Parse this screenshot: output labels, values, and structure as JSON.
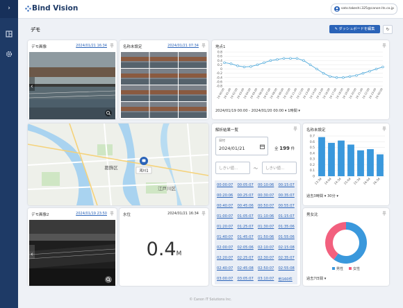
{
  "header": {
    "logo": "Bind Vision",
    "user": "sato.takeshi.325@canon-its.co.jp"
  },
  "page": {
    "title": "デモ",
    "edit_button": "ダッシュボードを編集",
    "footer": "© Canon IT Solutions Inc."
  },
  "cards": {
    "image1": {
      "title": "デモ画像",
      "date": "2024/01/21 16:34"
    },
    "image_grid": {
      "title": "名称未設定",
      "date": "2024/01/21 07:34"
    },
    "image2": {
      "title": "デモ画像2",
      "date": "2024/01/19 23:50"
    },
    "water": {
      "title": "水位",
      "date": "2024/01/21 16:34",
      "value": 0.4,
      "unit": "M"
    },
    "map": {
      "labels": [
        "葛飾区",
        "江戸川区"
      ],
      "marker": "河川1"
    },
    "results": {
      "title": "解析結果一覧",
      "date_label": "日付",
      "date": "2024/01/21",
      "total_prefix": "全",
      "total": 199,
      "total_suffix": "件",
      "threshold_min": "しきい値…",
      "range_sep": "〜",
      "threshold_max": "しきい値…",
      "times": [
        "00:00:07",
        "00:05:07",
        "00:10:06",
        "00:15:07",
        "00:20:06",
        "00:25:07",
        "00:30:07",
        "00:35:07",
        "00:40:07",
        "00:45:06",
        "00:50:07",
        "00:55:07",
        "01:00:07",
        "01:05:07",
        "01:10:06",
        "01:15:07",
        "01:20:07",
        "01:25:07",
        "01:30:07",
        "01:35:06",
        "01:40:07",
        "01:45:07",
        "01:50:06",
        "01:55:06",
        "02:00:07",
        "02:05:06",
        "02:10:07",
        "02:15:08",
        "02:20:07",
        "02:25:07",
        "02:30:07",
        "02:35:07",
        "02:40:07",
        "02:45:08",
        "02:50:07",
        "02:55:08",
        "03:00:07",
        "03:05:07",
        "03:10:07",
        "他160件"
      ]
    }
  },
  "chart_data": [
    {
      "type": "line",
      "title": "地点1",
      "categories": [
        "19 00:00",
        "19 01:00",
        "19 02:00",
        "19 03:00",
        "19 04:00",
        "19 05:00",
        "19 06:00",
        "19 07:00",
        "19 08:00",
        "19 09:00",
        "19 10:00",
        "19 11:00",
        "19 12:00",
        "19 13:00",
        "19 14:00",
        "19 15:00",
        "19 16:00",
        "19 17:00",
        "19 18:00",
        "19 19:00",
        "19 20:00",
        "19 21:00",
        "19 22:00",
        "19 23:00",
        "20 00:00"
      ],
      "series": [
        {
          "name": "地点1",
          "color": "#5aaedc",
          "values": [
            0.3,
            0.25,
            0.15,
            0.1,
            0.12,
            0.2,
            0.3,
            0.4,
            0.45,
            0.5,
            0.5,
            0.5,
            0.4,
            0.2,
            0.0,
            -0.2,
            -0.35,
            -0.4,
            -0.4,
            -0.35,
            -0.3,
            -0.2,
            -0.1,
            0.0,
            0.1
          ]
        }
      ],
      "ylim": [
        -0.8,
        0.8
      ],
      "yticks": [
        -0.8,
        -0.6,
        -0.4,
        -0.2,
        0,
        0.2,
        0.4,
        0.6,
        0.8
      ],
      "grid": true,
      "range": "2024/01/19 00:00 - 2024/01/20 00:00",
      "interval": "1時間"
    },
    {
      "type": "bar",
      "title": "名称未設定",
      "categories": [
        "13:34",
        "14:04",
        "14:34",
        "15:04",
        "15:34",
        "16:04",
        "16:34"
      ],
      "values": [
        0.68,
        0.58,
        0.62,
        0.55,
        0.45,
        0.47,
        0.38
      ],
      "color": "#3a98dc",
      "ylim": [
        0,
        0.7
      ],
      "yticks": [
        0,
        0.1,
        0.2,
        0.3,
        0.4,
        0.5,
        0.6,
        0.7
      ],
      "grid": true,
      "period": "過去3時間",
      "interval": "30分"
    },
    {
      "type": "pie",
      "title": "男女比",
      "categories": [
        "男性",
        "女性"
      ],
      "values": [
        60,
        40
      ],
      "colors": [
        "#3a98dc",
        "#f2607e"
      ],
      "period": "過去7日間"
    }
  ]
}
